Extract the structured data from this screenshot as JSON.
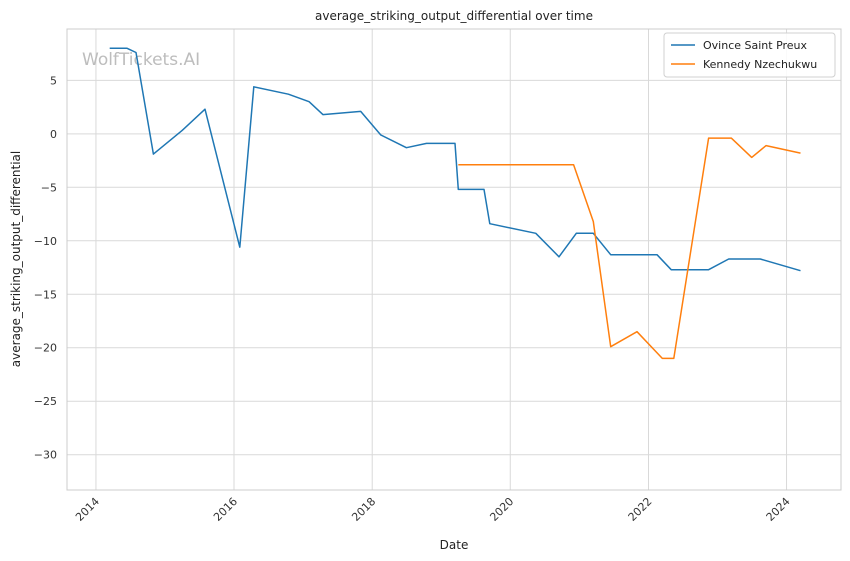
{
  "watermark": "WolfTickets.AI",
  "chart_data": {
    "type": "line",
    "title": "average_striking_output_differential over time",
    "xlabel": "Date",
    "ylabel": "average_striking_output_differential",
    "xlim": [
      "2013-08-01",
      "2024-10-15"
    ],
    "ylim": [
      -33.3,
      9.8
    ],
    "x_ticks": [
      "2014",
      "2016",
      "2018",
      "2020",
      "2022",
      "2024"
    ],
    "y_ticks": [
      5,
      0,
      -5,
      -10,
      -15,
      -20,
      -25,
      -30
    ],
    "grid": true,
    "legend_position": "top-right",
    "series": [
      {
        "name": "Ovince Saint Preux",
        "color": "#1f77b4",
        "points": [
          [
            "2014-03-15",
            8.0
          ],
          [
            "2014-06-15",
            8.0
          ],
          [
            "2014-08-01",
            7.6
          ],
          [
            "2014-11-01",
            -1.9
          ],
          [
            "2015-04-01",
            0.3
          ],
          [
            "2015-08-01",
            2.3
          ],
          [
            "2016-02-01",
            -10.6
          ],
          [
            "2016-04-15",
            4.4
          ],
          [
            "2016-10-15",
            3.7
          ],
          [
            "2017-02-01",
            3.0
          ],
          [
            "2017-04-15",
            1.8
          ],
          [
            "2017-11-01",
            2.1
          ],
          [
            "2018-02-15",
            -0.1
          ],
          [
            "2018-07-01",
            -1.3
          ],
          [
            "2018-10-15",
            -0.9
          ],
          [
            "2019-03-15",
            -0.9
          ],
          [
            "2019-04-01",
            -5.2
          ],
          [
            "2019-08-15",
            -5.2
          ],
          [
            "2019-09-15",
            -8.4
          ],
          [
            "2020-05-15",
            -9.3
          ],
          [
            "2020-09-15",
            -11.5
          ],
          [
            "2020-12-15",
            -9.3
          ],
          [
            "2021-03-15",
            -9.3
          ],
          [
            "2021-06-15",
            -11.3
          ],
          [
            "2022-02-15",
            -11.3
          ],
          [
            "2022-05-01",
            -12.7
          ],
          [
            "2022-11-15",
            -12.7
          ],
          [
            "2023-03-01",
            -11.7
          ],
          [
            "2023-08-15",
            -11.7
          ],
          [
            "2024-03-15",
            -12.8
          ]
        ]
      },
      {
        "name": "Kennedy Nzechukwu",
        "color": "#ff7f0e",
        "points": [
          [
            "2019-04-01",
            -2.9
          ],
          [
            "2020-12-01",
            -2.9
          ],
          [
            "2021-03-15",
            -8.2
          ],
          [
            "2021-06-15",
            -19.9
          ],
          [
            "2021-11-01",
            -18.5
          ],
          [
            "2022-03-15",
            -21.0
          ],
          [
            "2022-05-15",
            -21.0
          ],
          [
            "2022-11-15",
            -0.4
          ],
          [
            "2023-03-15",
            -0.4
          ],
          [
            "2023-07-01",
            -2.2
          ],
          [
            "2023-09-15",
            -1.1
          ],
          [
            "2024-03-15",
            -1.8
          ]
        ]
      }
    ]
  }
}
